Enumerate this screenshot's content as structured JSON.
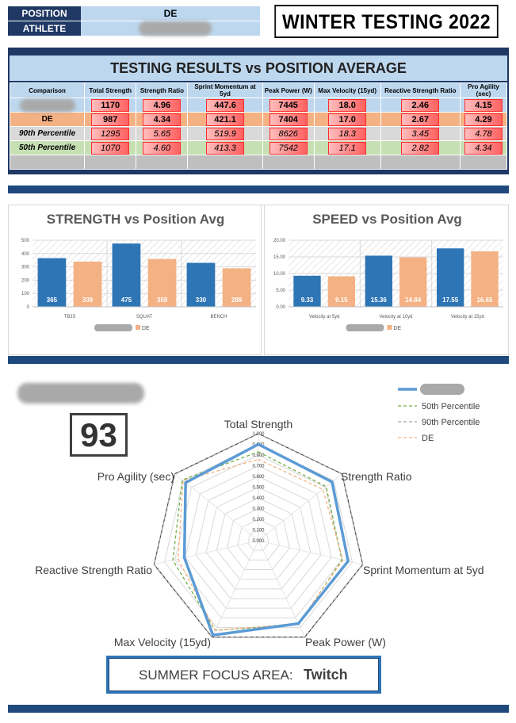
{
  "header": {
    "position_label": "POSITION",
    "position_value": "DE",
    "athlete_label": "ATHLETE",
    "title": "WINTER TESTING 2022"
  },
  "results": {
    "title": "TESTING RESULTS vs POSITION AVERAGE",
    "columns": [
      "Comparison",
      "Total Strength",
      "Strength Ratio",
      "Sprint Momentum at 5yd",
      "Peak Power (W)",
      "Max Velocity (15yd)",
      "Reactive Strength Ratio",
      "Pro Agility (sec)"
    ],
    "rows": [
      {
        "label": "",
        "values": [
          "1170",
          "4.96",
          "447.6",
          "7445",
          "18.0",
          "2.46",
          "4.15"
        ]
      },
      {
        "label": "DE",
        "values": [
          "987",
          "4.34",
          "421.1",
          "7404",
          "17.0",
          "2.67",
          "4.29"
        ]
      },
      {
        "label": "90th Percentile",
        "values": [
          "1295",
          "5.65",
          "519.9",
          "8626",
          "18.3",
          "3.45",
          "4.78"
        ]
      },
      {
        "label": "50th Percentile",
        "values": [
          "1070",
          "4.60",
          "413.3",
          "7542",
          "17.1",
          "2.82",
          "4.34"
        ]
      }
    ]
  },
  "chart_data": [
    {
      "type": "bar",
      "title": "STRENGTH vs Position Avg",
      "categories": [
        "TBJS",
        "SQUAT",
        "BENCH"
      ],
      "series": [
        {
          "name": "",
          "color": "#2e75b6",
          "values": [
            365,
            475,
            330
          ]
        },
        {
          "name": "DE",
          "color": "#f4b183",
          "values": [
            339,
            359,
            289
          ]
        }
      ],
      "ylim": [
        0,
        500
      ],
      "yticks": [
        "0",
        "100",
        "200",
        "300",
        "400",
        "500"
      ],
      "legend": "bottom"
    },
    {
      "type": "bar",
      "title": "SPEED vs Position Avg",
      "categories": [
        "Velocity at 5yd",
        "Velocity at 10yd",
        "Velocity at 15yd"
      ],
      "series": [
        {
          "name": "",
          "color": "#2e75b6",
          "values": [
            9.33,
            15.36,
            17.55
          ]
        },
        {
          "name": "DE",
          "color": "#f4b183",
          "values": [
            9.15,
            14.84,
            16.65
          ]
        }
      ],
      "value_labels": [
        [
          "9.33",
          "15.36",
          "17.55"
        ],
        [
          "9.15",
          "14.84",
          "16.65"
        ]
      ],
      "ylim": [
        0,
        20
      ],
      "yticks": [
        "0.00",
        "5.00",
        "10.00",
        "15.00",
        "20.00"
      ],
      "legend": "bottom"
    },
    {
      "type": "radar",
      "axes": [
        "Total Strength",
        "Strength Ratio",
        "Sprint Momentum at 5yd",
        "Peak Power (W)",
        "Max Velocity (15yd)",
        "Reactive Strength Ratio",
        "Pro Agility (sec)"
      ],
      "rticks": [
        "0.000",
        "0.100",
        "0.200",
        "0.300",
        "0.400",
        "0.500",
        "0.600",
        "0.700",
        "0.800",
        "0.900",
        "1.000"
      ],
      "rlim": [
        0,
        1
      ],
      "series": [
        {
          "name": "",
          "color": "#5b9bd5",
          "values": [
            0.9,
            0.88,
            0.86,
            0.86,
            0.98,
            0.71,
            0.87
          ]
        },
        {
          "name": "50th Percentile",
          "color": "#70ad47",
          "values": [
            0.83,
            0.81,
            0.8,
            0.87,
            0.93,
            0.82,
            0.91
          ]
        },
        {
          "name": "90th Percentile",
          "color": "#a5a5a5",
          "values": [
            1.0,
            1.0,
            1.0,
            1.0,
            1.0,
            1.0,
            1.0
          ]
        },
        {
          "name": "DE",
          "color": "#f4b183",
          "values": [
            0.76,
            0.77,
            0.81,
            0.86,
            0.93,
            0.77,
            0.9
          ]
        }
      ],
      "legend": "top-right"
    }
  ],
  "score": "93",
  "focus": {
    "label": "SUMMER FOCUS AREA:",
    "value": "Twitch"
  }
}
